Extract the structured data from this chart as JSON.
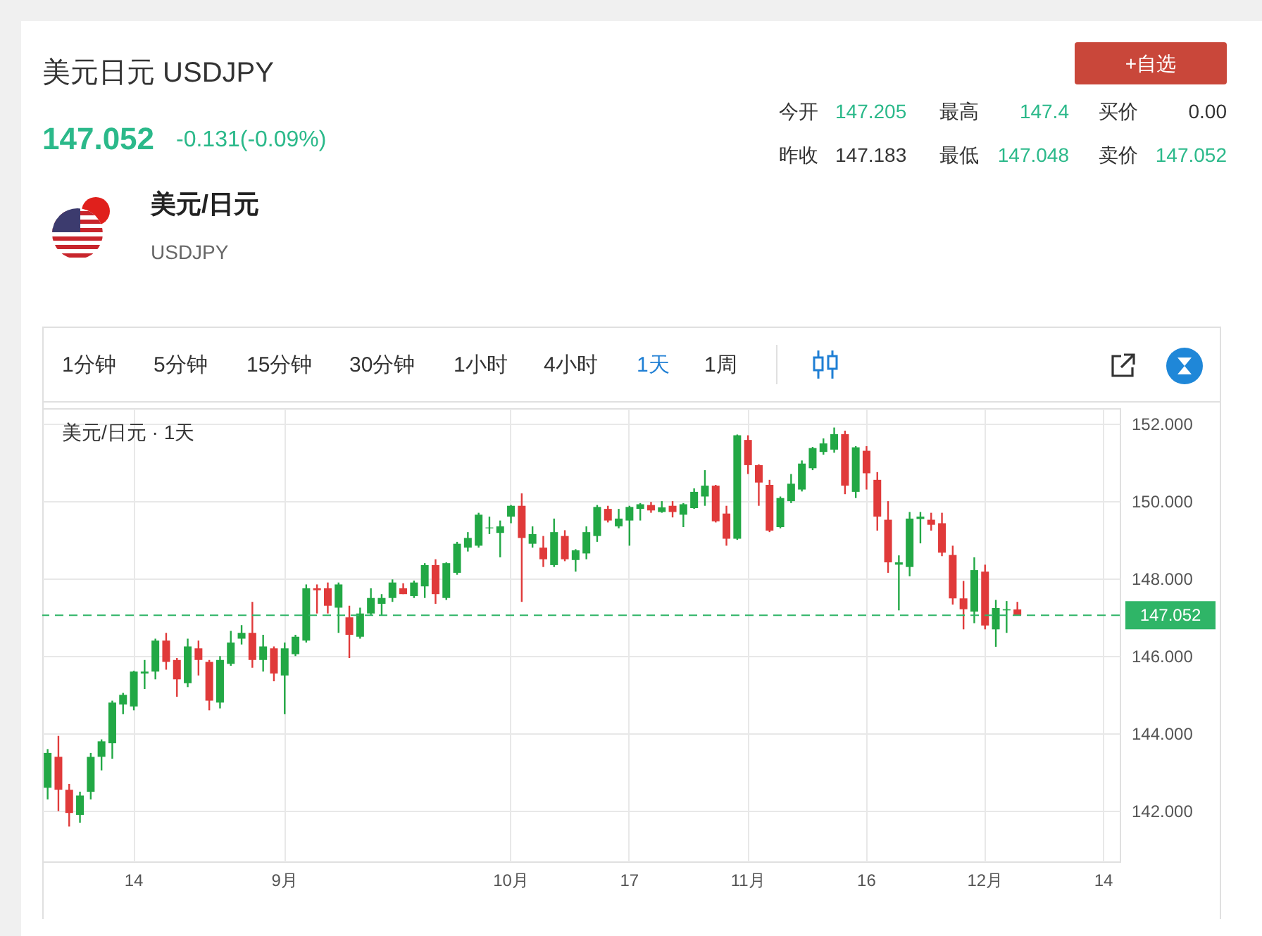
{
  "chart_data": {
    "type": "candlestick",
    "title": "美元日元 USDJPY",
    "annotations": [
      "147.052",
      "-0.131(-0.09%)",
      "+自选",
      "今开",
      "147.205",
      "最高",
      "147.4",
      "买价",
      "0.00",
      "昨收",
      "147.183",
      "最低",
      "147.048",
      "卖价",
      "147.052",
      "美元/日元",
      "USDJPY",
      "1分钟",
      "5分钟",
      "15分钟",
      "30分钟",
      "1小时",
      "4小时",
      "1天",
      "1周",
      "美元/日元 · 1天"
    ],
    "categories": [
      null,
      null,
      null,
      null,
      null,
      null,
      null,
      null,
      "14",
      null,
      null,
      null,
      null,
      null,
      null,
      null,
      null,
      null,
      null,
      null,
      null,
      null,
      "9月",
      null,
      null,
      null,
      null,
      null,
      null,
      null,
      null,
      null,
      null,
      null,
      null,
      null,
      null,
      null,
      null,
      null,
      null,
      null,
      null,
      "10月",
      null,
      null,
      null,
      null,
      null,
      null,
      null,
      null,
      null,
      null,
      "17",
      null,
      null,
      null,
      null,
      null,
      null,
      null,
      null,
      null,
      null,
      "11月",
      null,
      null,
      null,
      null,
      null,
      null,
      null,
      null,
      null,
      null,
      "16",
      null,
      null,
      null,
      null,
      null,
      null,
      null,
      null,
      null,
      null,
      "12月",
      null,
      null,
      null,
      null,
      null,
      null,
      null,
      null,
      null,
      null,
      "14",
      null
    ],
    "ohlc": [
      [
        142.6,
        143.6,
        142.3,
        143.5
      ],
      [
        143.4,
        143.94,
        142.0,
        142.55
      ],
      [
        142.55,
        142.7,
        141.6,
        141.95
      ],
      [
        141.9,
        142.5,
        141.7,
        142.4
      ],
      [
        142.5,
        143.5,
        142.3,
        143.4
      ],
      [
        143.4,
        143.85,
        143.05,
        143.8
      ],
      [
        143.75,
        144.85,
        143.35,
        144.8
      ],
      [
        144.75,
        145.05,
        144.5,
        145.0
      ],
      [
        144.7,
        145.62,
        144.6,
        145.6
      ],
      [
        145.55,
        145.9,
        145.15,
        145.6
      ],
      [
        145.6,
        146.45,
        145.4,
        146.4
      ],
      [
        146.4,
        146.6,
        145.65,
        145.85
      ],
      [
        145.9,
        145.95,
        144.95,
        145.4
      ],
      [
        145.3,
        146.45,
        145.2,
        146.25
      ],
      [
        146.2,
        146.4,
        145.5,
        145.9
      ],
      [
        145.85,
        145.9,
        144.6,
        144.85
      ],
      [
        144.8,
        146.0,
        144.65,
        145.9
      ],
      [
        145.8,
        146.65,
        145.75,
        146.35
      ],
      [
        146.45,
        146.8,
        146.3,
        146.6
      ],
      [
        146.6,
        147.4,
        145.7,
        145.9
      ],
      [
        145.9,
        146.55,
        145.6,
        146.25
      ],
      [
        146.2,
        146.25,
        145.35,
        145.55
      ],
      [
        145.5,
        146.35,
        144.5,
        146.2
      ],
      [
        146.05,
        146.55,
        146.0,
        146.5
      ],
      [
        146.4,
        147.85,
        146.35,
        147.75
      ],
      [
        147.75,
        147.85,
        147.1,
        147.7
      ],
      [
        147.75,
        147.9,
        147.1,
        147.3
      ],
      [
        147.25,
        147.9,
        146.6,
        147.85
      ],
      [
        147.0,
        147.3,
        145.95,
        146.55
      ],
      [
        146.5,
        147.25,
        146.45,
        147.1
      ],
      [
        147.1,
        147.75,
        147.05,
        147.5
      ],
      [
        147.35,
        147.6,
        147.05,
        147.5
      ],
      [
        147.5,
        147.98,
        147.4,
        147.9
      ],
      [
        147.75,
        147.88,
        147.6,
        147.6
      ],
      [
        147.55,
        147.95,
        147.5,
        147.9
      ],
      [
        147.8,
        148.4,
        147.5,
        148.35
      ],
      [
        148.35,
        148.5,
        147.35,
        147.6
      ],
      [
        147.5,
        148.42,
        147.45,
        148.4
      ],
      [
        148.15,
        148.95,
        148.1,
        148.9
      ],
      [
        148.8,
        149.2,
        148.7,
        149.05
      ],
      [
        148.85,
        149.7,
        148.8,
        149.65
      ],
      [
        149.3,
        149.6,
        149.15,
        149.32
      ],
      [
        149.18,
        149.5,
        148.55,
        149.35
      ],
      [
        149.6,
        149.9,
        149.43,
        149.88
      ],
      [
        149.88,
        150.2,
        147.4,
        149.05
      ],
      [
        148.9,
        149.35,
        148.8,
        149.15
      ],
      [
        148.8,
        149.1,
        148.3,
        148.5
      ],
      [
        148.35,
        149.55,
        148.3,
        149.2
      ],
      [
        149.1,
        149.25,
        148.45,
        148.5
      ],
      [
        148.48,
        148.76,
        148.18,
        148.73
      ],
      [
        148.65,
        149.35,
        148.5,
        149.2
      ],
      [
        149.1,
        149.9,
        148.95,
        149.85
      ],
      [
        149.8,
        149.88,
        149.45,
        149.5
      ],
      [
        149.35,
        149.8,
        149.3,
        149.55
      ],
      [
        149.5,
        149.88,
        148.85,
        149.85
      ],
      [
        149.8,
        149.95,
        149.5,
        149.92
      ],
      [
        149.9,
        149.98,
        149.7,
        149.76
      ],
      [
        149.72,
        150.0,
        149.7,
        149.84
      ],
      [
        149.88,
        150.0,
        149.58,
        149.72
      ],
      [
        149.65,
        149.95,
        149.33,
        149.92
      ],
      [
        149.82,
        150.33,
        149.8,
        150.24
      ],
      [
        150.12,
        150.8,
        149.88,
        150.4
      ],
      [
        150.4,
        150.42,
        149.45,
        149.48
      ],
      [
        149.68,
        149.88,
        148.85,
        149.03
      ],
      [
        149.03,
        151.72,
        149.0,
        151.7
      ],
      [
        151.58,
        151.7,
        150.7,
        150.93
      ],
      [
        150.93,
        150.95,
        149.88,
        150.48
      ],
      [
        150.42,
        150.55,
        149.2,
        149.24
      ],
      [
        149.33,
        150.12,
        149.3,
        150.08
      ],
      [
        150.0,
        150.7,
        149.95,
        150.45
      ],
      [
        150.3,
        151.05,
        150.25,
        150.97
      ],
      [
        150.85,
        151.4,
        150.8,
        151.37
      ],
      [
        151.27,
        151.62,
        151.2,
        151.49
      ],
      [
        151.33,
        151.9,
        151.25,
        151.73
      ],
      [
        151.73,
        151.82,
        150.18,
        150.4
      ],
      [
        150.24,
        151.42,
        150.08,
        151.39
      ],
      [
        151.3,
        151.42,
        150.3,
        150.72
      ],
      [
        150.55,
        150.75,
        149.24,
        149.6
      ],
      [
        149.52,
        150.0,
        148.15,
        148.42
      ],
      [
        148.36,
        148.6,
        147.18,
        148.42
      ],
      [
        148.3,
        149.72,
        148.06,
        149.55
      ],
      [
        149.54,
        149.72,
        148.91,
        149.6
      ],
      [
        149.52,
        149.7,
        149.24,
        149.39
      ],
      [
        149.43,
        149.7,
        148.58,
        148.67
      ],
      [
        148.61,
        148.85,
        147.33,
        147.49
      ],
      [
        147.49,
        147.94,
        146.69,
        147.21
      ],
      [
        147.15,
        148.55,
        146.85,
        148.22
      ],
      [
        148.18,
        148.36,
        146.69,
        146.79
      ],
      [
        146.69,
        147.45,
        146.24,
        147.24
      ],
      [
        147.18,
        147.42,
        146.6,
        147.21
      ],
      [
        147.205,
        147.4,
        147.048,
        147.052
      ],
      null,
      null,
      null,
      null,
      null,
      null,
      null,
      null,
      null
    ],
    "colors": [
      "#22a845",
      "#e03a3a",
      "#e03a3a",
      "#22a845",
      "#22a845",
      "#22a845",
      "#22a845",
      "#22a845",
      "#22a845",
      "#22a845",
      "#22a845",
      "#e03a3a",
      "#e03a3a",
      "#22a845",
      "#e03a3a",
      "#e03a3a",
      "#22a845",
      "#22a845",
      "#22a845",
      "#e03a3a",
      "#22a845",
      "#e03a3a",
      "#22a845",
      "#22a845",
      "#22a845",
      "#e03a3a",
      "#e03a3a",
      "#22a845",
      "#e03a3a",
      "#22a845",
      "#22a845",
      "#22a845",
      "#22a845",
      "#e03a3a",
      "#22a845",
      "#22a845",
      "#e03a3a",
      "#22a845",
      "#22a845",
      "#22a845",
      "#22a845",
      "#22a845",
      "#22a845",
      "#22a845",
      "#e03a3a",
      "#22a845",
      "#e03a3a",
      "#22a845",
      "#e03a3a",
      "#22a845",
      "#22a845",
      "#22a845",
      "#e03a3a",
      "#22a845",
      "#22a845",
      "#22a845",
      "#e03a3a",
      "#22a845",
      "#e03a3a",
      "#22a845",
      "#22a845",
      "#22a845",
      "#e03a3a",
      "#e03a3a",
      "#22a845",
      "#e03a3a",
      "#e03a3a",
      "#e03a3a",
      "#22a845",
      "#22a845",
      "#22a845",
      "#22a845",
      "#22a845",
      "#22a845",
      "#e03a3a",
      "#22a845",
      "#e03a3a",
      "#e03a3a",
      "#e03a3a",
      "#22a845",
      "#22a845",
      "#22a845",
      "#e03a3a",
      "#e03a3a",
      "#e03a3a",
      "#e03a3a",
      "#22a845",
      "#e03a3a",
      "#22a845",
      "#22a845",
      "#e03a3a",
      null,
      null,
      null,
      null,
      null,
      null,
      null,
      null,
      null
    ],
    "ylim": [
      140.7,
      152.4
    ],
    "yticks": [
      {
        "value": 142,
        "label": "142.000"
      },
      {
        "value": 144,
        "label": "144.000"
      },
      {
        "value": 146,
        "label": "146.000"
      },
      {
        "value": 148,
        "label": "148.000"
      },
      {
        "value": 150,
        "label": "150.000"
      },
      {
        "value": 152,
        "label": "152.000"
      }
    ],
    "grid": true,
    "ref_lines": [
      {
        "axis": "y",
        "value": 147.052,
        "label": "147.052",
        "color": "#2fb567",
        "line_style": "dashed"
      }
    ]
  }
}
